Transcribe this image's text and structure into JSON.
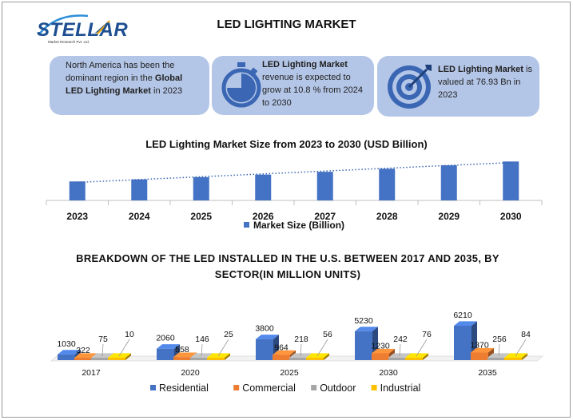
{
  "header": {
    "logo_text": "STELLAR",
    "logo_subtext": "Market Research Pvt. Ltd.",
    "title": "LED LIGHTING MARKET"
  },
  "cards": [
    {
      "pre": "North America has been the dominant region in the ",
      "bold": "Global LED Lighting Market",
      "post": " in 2023",
      "icon": "none"
    },
    {
      "pre": "",
      "bold": "LED Lighting Market",
      "post": " revenue is expected to grow at 10.8 % from 2024 to 2030",
      "icon": "stopwatch-icon"
    },
    {
      "pre": "",
      "bold": "LED Lighting Market",
      "post": " is valued at 76.93 Bn in 2023",
      "icon": "target-icon"
    }
  ],
  "colors": {
    "card_bg": "#b4c6e7",
    "bar_blue": "#4472c4",
    "residential": "#4472c4",
    "commercial": "#ed7d31",
    "outdoor": "#a5a5a5",
    "industrial": "#ffc000"
  },
  "chart_data": [
    {
      "type": "bar",
      "title": "LED Lighting Market Size from 2023 to 2030 (USD Billion)",
      "categories": [
        "2023",
        "2024",
        "2025",
        "2026",
        "2027",
        "2028",
        "2029",
        "2030"
      ],
      "series": [
        {
          "name": "Market Size (Billion)",
          "values": [
            76.93,
            85.2,
            94.4,
            104.6,
            115.9,
            128.4,
            142.3,
            157.7
          ]
        }
      ],
      "trendline": "linear dotted",
      "ylim": [
        0,
        165
      ],
      "legend": "bottom"
    },
    {
      "type": "bar",
      "title": "BREAKDOWN OF THE LED INSTALLED IN THE U.S. BETWEEN 2017 AND 2035, BY SECTOR(IN MILLION UNITS)",
      "categories": [
        "2017",
        "2020",
        "2025",
        "2030",
        "2035"
      ],
      "series": [
        {
          "name": "Residential",
          "values": [
            1030,
            2060,
            3800,
            5230,
            6210
          ]
        },
        {
          "name": "Commercial",
          "values": [
            322,
            558,
            964,
            1230,
            1370
          ]
        },
        {
          "name": "Outdoor",
          "values": [
            75,
            146,
            218,
            242,
            256
          ]
        },
        {
          "name": "Industrial",
          "values": [
            10,
            25,
            56,
            76,
            84
          ]
        }
      ],
      "ylim": [
        0,
        6500
      ],
      "legend": "bottom"
    }
  ]
}
